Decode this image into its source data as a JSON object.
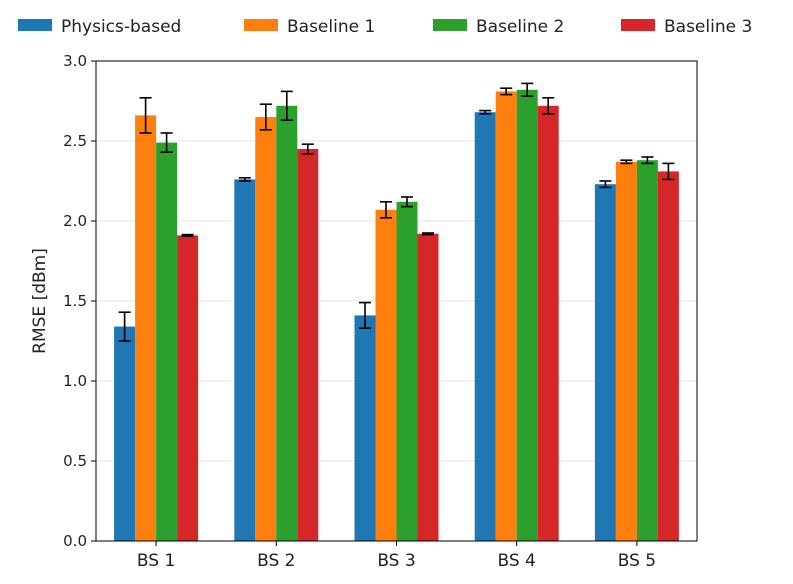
{
  "chart_data": {
    "type": "bar",
    "title": "",
    "xlabel": "",
    "ylabel": "RMSE [dBm]",
    "categories": [
      "BS 1",
      "BS 2",
      "BS 3",
      "BS 4",
      "BS 5"
    ],
    "ylim": [
      0,
      3.0
    ],
    "yticks": [
      "0.0",
      "0.5",
      "1.0",
      "1.5",
      "2.0",
      "2.5",
      "3.0"
    ],
    "grid": "horizontal",
    "legend_position": "top",
    "series": [
      {
        "name": "Physics-based",
        "color": "#1f77b4",
        "values": [
          1.34,
          2.26,
          1.41,
          2.68,
          2.23
        ],
        "errors": [
          0.09,
          0.01,
          0.08,
          0.01,
          0.02
        ]
      },
      {
        "name": "Baseline 1",
        "color": "#ff7f0e",
        "values": [
          2.66,
          2.65,
          2.07,
          2.81,
          2.37
        ],
        "errors": [
          0.11,
          0.08,
          0.05,
          0.02,
          0.01
        ]
      },
      {
        "name": "Baseline 2",
        "color": "#2ca02c",
        "values": [
          2.49,
          2.72,
          2.12,
          2.82,
          2.38
        ],
        "errors": [
          0.06,
          0.09,
          0.03,
          0.04,
          0.02
        ]
      },
      {
        "name": "Baseline 3",
        "color": "#d62728",
        "values": [
          1.91,
          2.45,
          1.92,
          2.72,
          2.31
        ],
        "errors": [
          0.005,
          0.03,
          0.005,
          0.05,
          0.05
        ]
      }
    ]
  }
}
